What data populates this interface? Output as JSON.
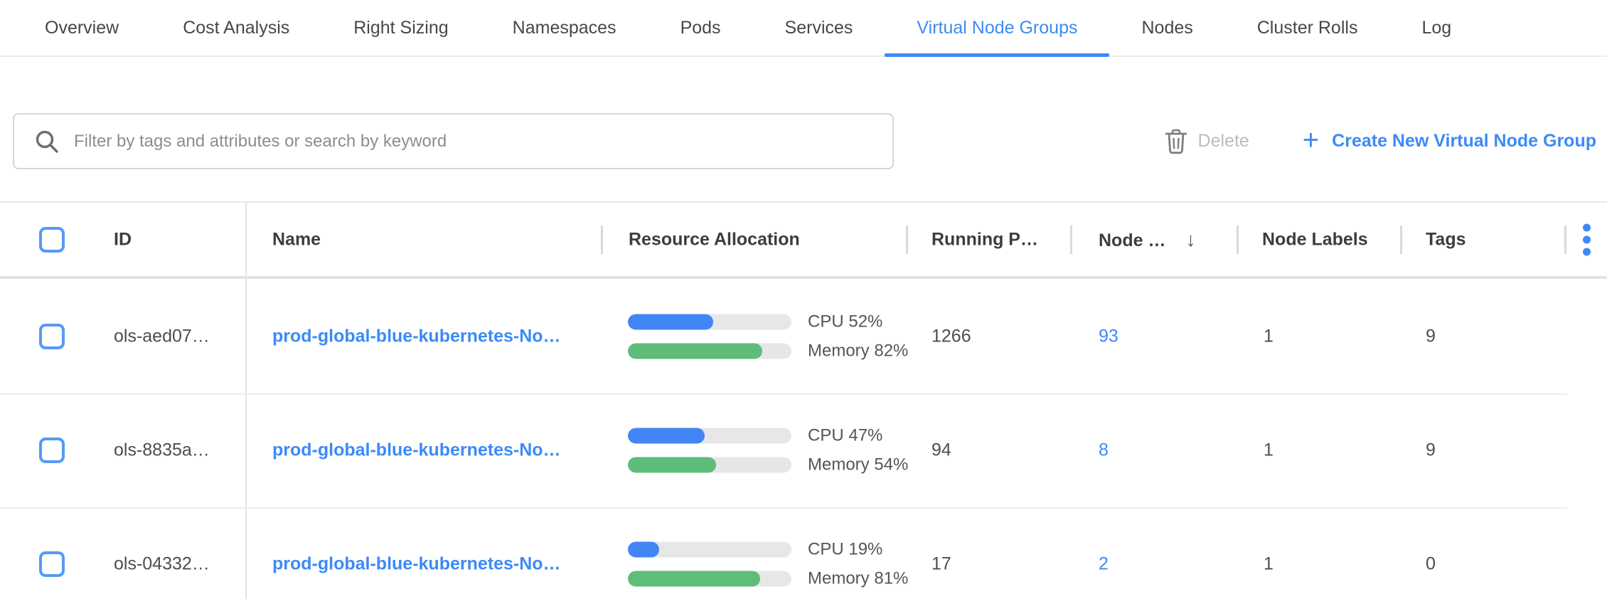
{
  "tabs": {
    "items": [
      {
        "label": "Overview",
        "active": false
      },
      {
        "label": "Cost Analysis",
        "active": false
      },
      {
        "label": "Right Sizing",
        "active": false
      },
      {
        "label": "Namespaces",
        "active": false
      },
      {
        "label": "Pods",
        "active": false
      },
      {
        "label": "Services",
        "active": false
      },
      {
        "label": "Virtual Node Groups",
        "active": true
      },
      {
        "label": "Nodes",
        "active": false
      },
      {
        "label": "Cluster Rolls",
        "active": false
      },
      {
        "label": "Log",
        "active": false
      }
    ]
  },
  "toolbar": {
    "search_placeholder": "Filter by tags and attributes or search by keyword",
    "search_icon": "magnifier",
    "delete_label": "Delete",
    "delete_icon": "trash",
    "delete_enabled": false,
    "create_label": "Create New Virtual Node Group",
    "create_icon": "plus"
  },
  "table": {
    "columns": {
      "id": "ID",
      "name": "Name",
      "resource": "Resource Allocation",
      "running_pods": "Running P…",
      "nodes": "Node …",
      "node_labels": "Node Labels",
      "tags": "Tags"
    },
    "sort_icon": "↓",
    "sorted_column": "nodes",
    "menu_icon": "kebab-vertical",
    "rows": [
      {
        "id": "ols-aed07…",
        "name": "prod-global-blue-kubernetes-No…",
        "cpu_pct": 52,
        "cpu_label": "CPU 52%",
        "mem_pct": 82,
        "mem_label": "Memory 82%",
        "running_pods": "1266",
        "nodes": "93",
        "node_labels": "1",
        "tags": "9"
      },
      {
        "id": "ols-8835a…",
        "name": "prod-global-blue-kubernetes-No…",
        "cpu_pct": 47,
        "cpu_label": "CPU 47%",
        "mem_pct": 54,
        "mem_label": "Memory 54%",
        "running_pods": "94",
        "nodes": "8",
        "node_labels": "1",
        "tags": "9"
      },
      {
        "id": "ols-04332…",
        "name": "prod-global-blue-kubernetes-No…",
        "cpu_pct": 19,
        "cpu_label": "CPU 19%",
        "mem_pct": 81,
        "mem_label": "Memory 81%",
        "running_pods": "17",
        "nodes": "2",
        "node_labels": "1",
        "tags": "0"
      }
    ]
  },
  "colors": {
    "accent_blue": "#3d8af5",
    "cpu_bar_blue": "#4285f4",
    "memory_bar_green": "#5ebd79",
    "disabled_gray": "#bdbdbd"
  }
}
